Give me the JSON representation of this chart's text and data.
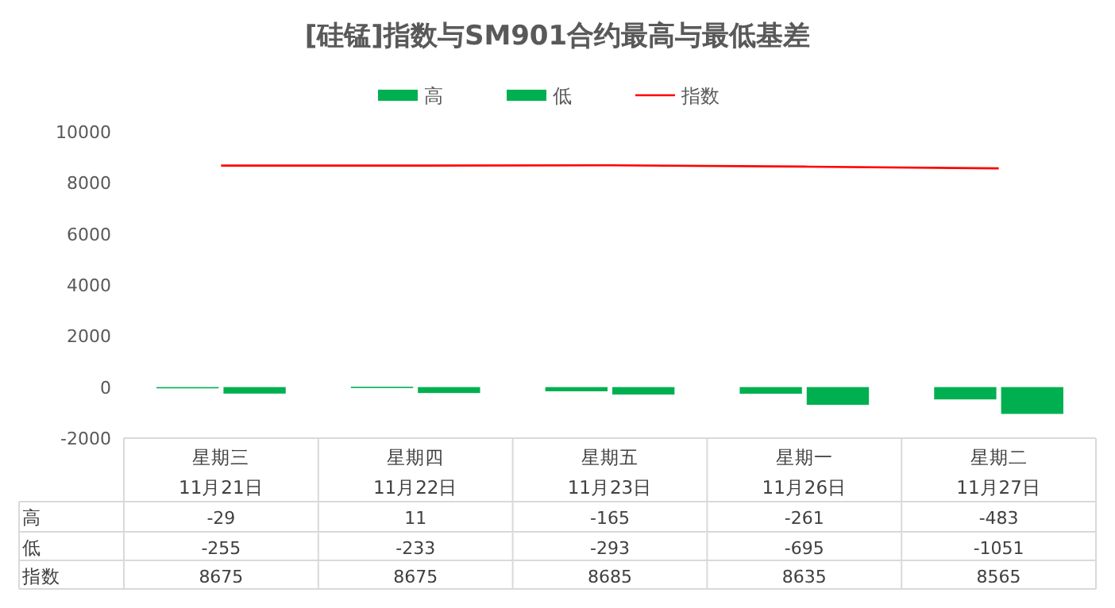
{
  "chart_data": {
    "type": "bar",
    "title": "[硅锰]指数与SM901合约最高与最低基差",
    "categories": [
      "星期三\n11月21日",
      "星期四\n11月22日",
      "星期五\n11月23日",
      "星期一\n11月26日",
      "星期二\n11月27日"
    ],
    "series": [
      {
        "name": "高",
        "color": "#00b050",
        "values": [
          -29,
          11,
          -165,
          -261,
          -483
        ]
      },
      {
        "name": "低",
        "color": "#00b050",
        "values": [
          -255,
          -233,
          -293,
          -695,
          -1051
        ]
      },
      {
        "name": "指数",
        "type": "line",
        "color": "#ff0000",
        "values": [
          8675,
          8675,
          8685,
          8635,
          8565
        ]
      }
    ],
    "ylim": [
      -2000,
      10000
    ],
    "yticks": [
      -2000,
      0,
      2000,
      4000,
      6000,
      8000,
      10000
    ],
    "legend": "top",
    "data_labels": true
  }
}
